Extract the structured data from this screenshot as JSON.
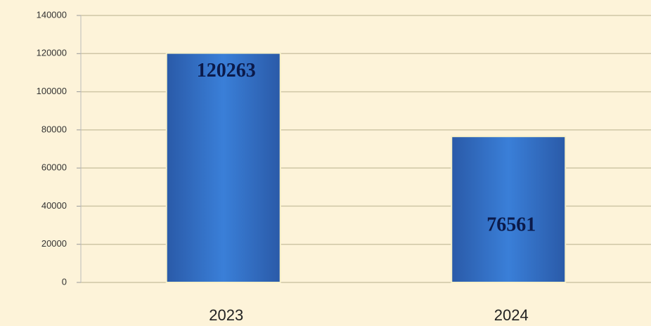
{
  "chart_data": {
    "type": "bar",
    "categories": [
      "2023",
      "2024"
    ],
    "values": [
      120263,
      76561
    ],
    "color": "#3a78d0",
    "ylim": [
      0,
      140000
    ],
    "yticks": [
      0,
      20000,
      40000,
      60000,
      80000,
      100000,
      120000,
      140000
    ],
    "grid": true
  }
}
